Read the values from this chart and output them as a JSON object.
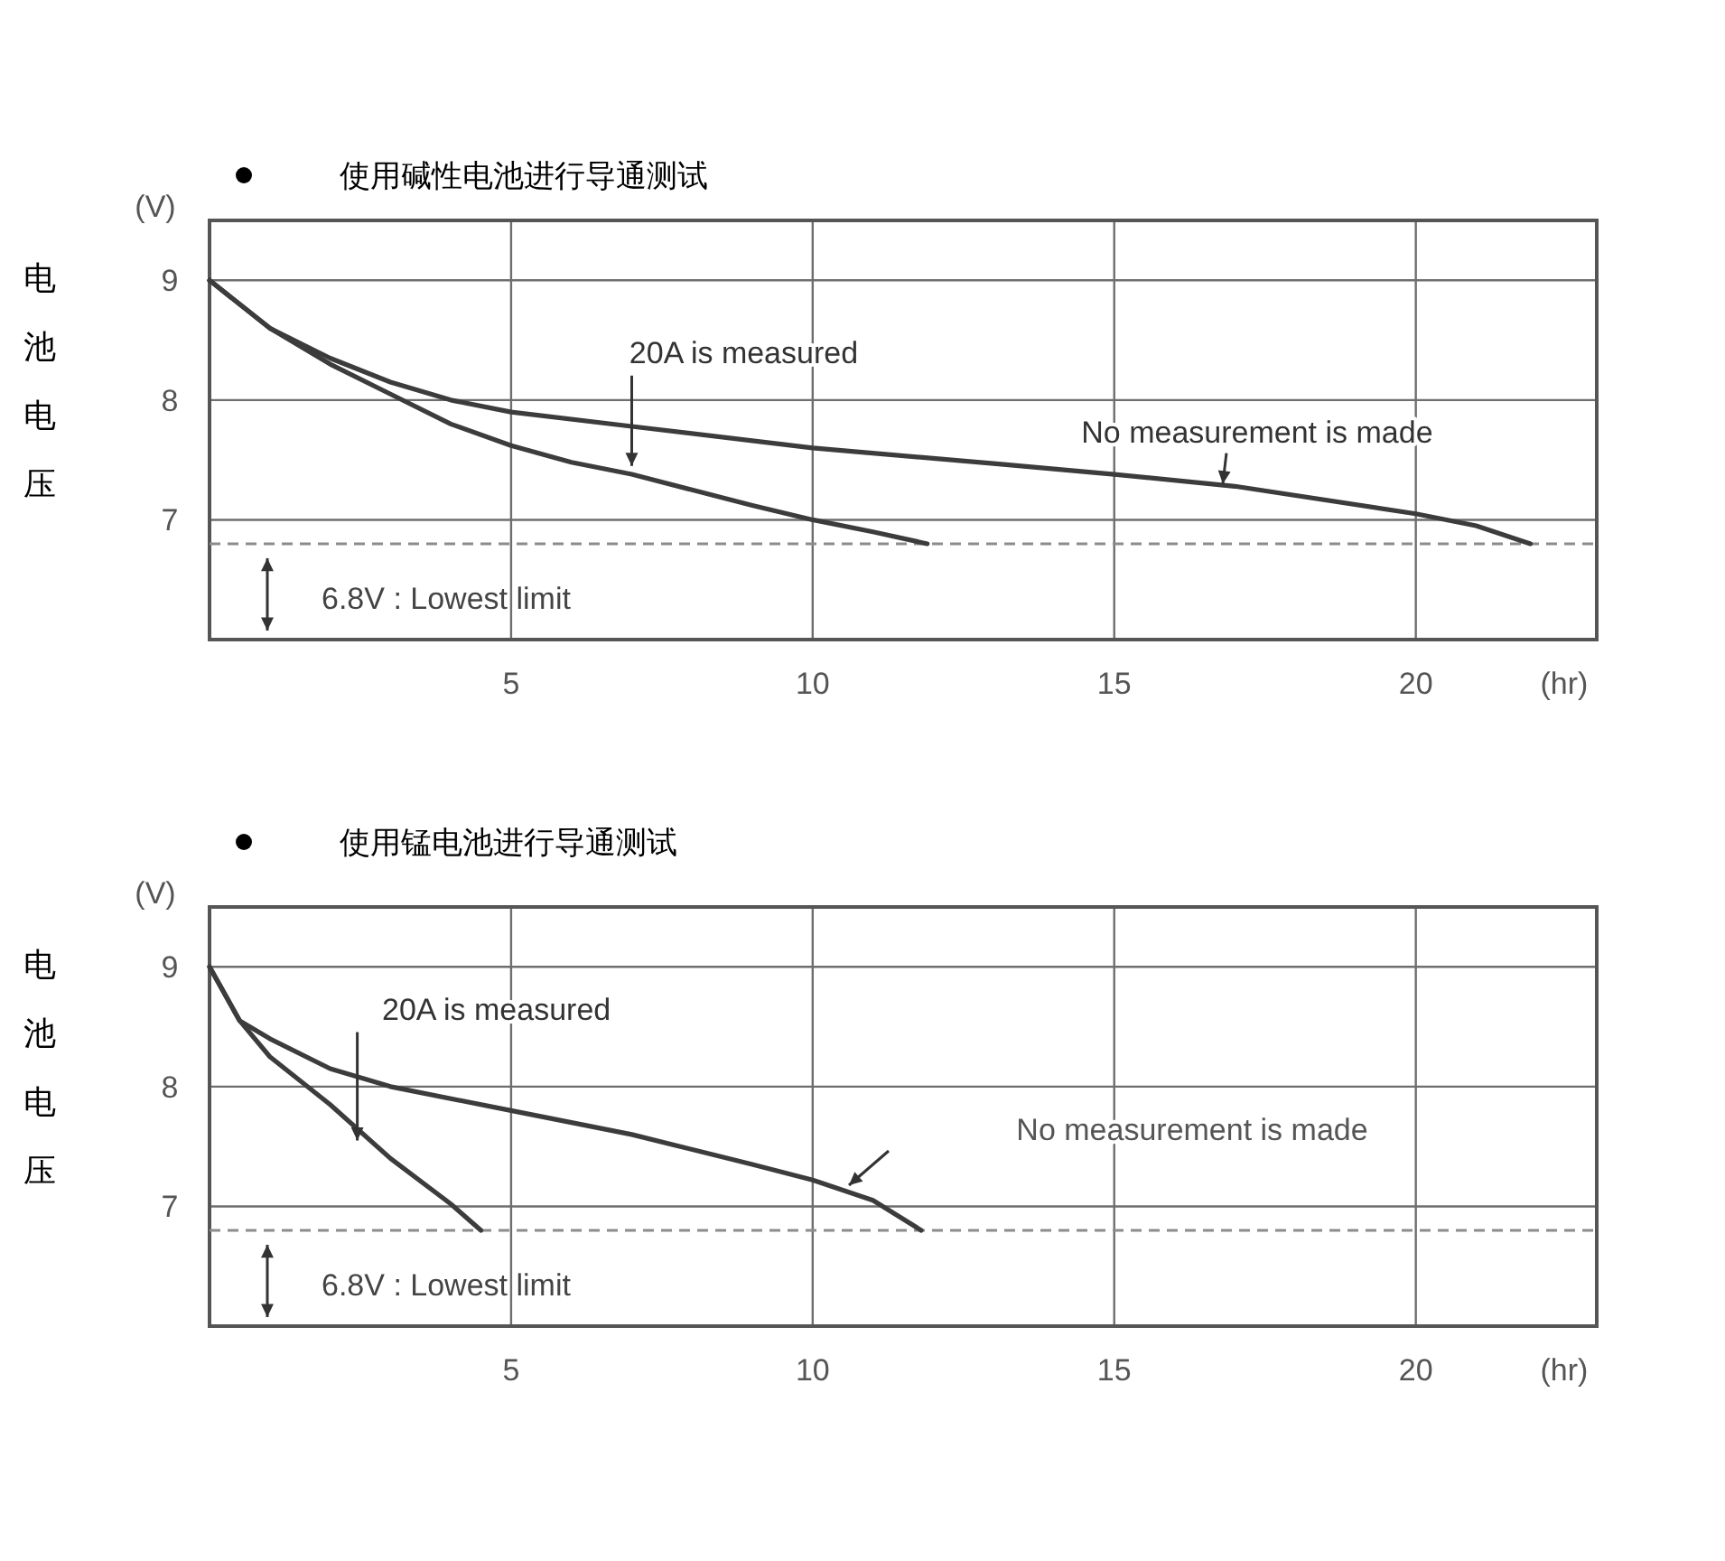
{
  "chart_data": [
    {
      "type": "line",
      "title": "使用碱性电池进行导通测试",
      "xlabel": "(hr)",
      "ylabel": "电池电压",
      "xlim": [
        0,
        23
      ],
      "ylim": [
        6,
        9.5
      ],
      "xticks": [
        5,
        10,
        15,
        20
      ],
      "yticks": [
        7,
        8,
        9
      ],
      "grid": true,
      "series": [
        {
          "color": "#3c3c3c",
          "x": [
            0,
            1,
            2,
            3,
            4,
            5,
            7,
            10,
            13,
            15,
            17,
            20,
            21,
            21.9
          ],
          "values": [
            9.0,
            8.6,
            8.35,
            8.15,
            8.0,
            7.9,
            7.78,
            7.6,
            7.47,
            7.38,
            7.28,
            7.05,
            6.95,
            6.8
          ]
        },
        {
          "color": "#3c3c3c",
          "x": [
            0,
            1,
            2,
            3,
            4,
            5,
            6,
            7,
            8,
            9,
            10,
            11,
            11.9
          ],
          "values": [
            9.0,
            8.6,
            8.3,
            8.05,
            7.8,
            7.62,
            7.48,
            7.38,
            7.25,
            7.12,
            7.0,
            6.9,
            6.8
          ]
        }
      ],
      "ref_lines": [
        {
          "axis": "y",
          "value": 6.8,
          "label": "6.8V : Lowest limit",
          "color": "#8c8c8c",
          "line_style": "dashed"
        }
      ],
      "annotations": [
        {
          "text": "20A is measured",
          "x": 7,
          "y": 7.45
        },
        {
          "text": "No measurement is made",
          "x": 16.8,
          "y": 7.3
        },
        "(V)"
      ]
    },
    {
      "type": "line",
      "title": "使用锰电池进行导通测试",
      "xlabel": "(hr)",
      "ylabel": "电池电压",
      "xlim": [
        0,
        23
      ],
      "ylim": [
        6,
        9.5
      ],
      "xticks": [
        5,
        10,
        15,
        20
      ],
      "yticks": [
        7,
        8,
        9
      ],
      "grid": true,
      "series": [
        {
          "color": "#3c3c3c",
          "x": [
            0,
            0.5,
            1,
            2,
            3,
            5,
            7,
            9,
            10,
            11,
            11.8
          ],
          "values": [
            9.0,
            8.55,
            8.4,
            8.15,
            8.0,
            7.8,
            7.6,
            7.35,
            7.22,
            7.05,
            6.8
          ]
        },
        {
          "color": "#3c3c3c",
          "x": [
            0,
            0.5,
            1,
            2,
            3,
            4,
            4.5
          ],
          "values": [
            9.0,
            8.55,
            8.25,
            7.85,
            7.4,
            7.02,
            6.8
          ]
        }
      ],
      "ref_lines": [
        {
          "axis": "y",
          "value": 6.8,
          "label": "6.8V : Lowest limit",
          "color": "#8c8c8c",
          "line_style": "dashed"
        }
      ],
      "annotations": [
        {
          "text": "20A is measured",
          "x": 2.45,
          "y": 7.55
        },
        "No measurement is made",
        "(V)"
      ]
    }
  ]
}
